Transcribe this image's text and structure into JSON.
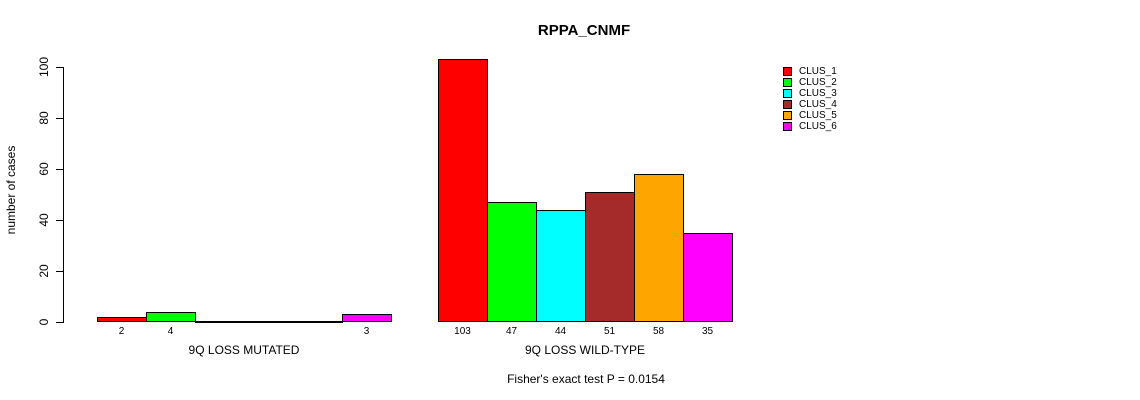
{
  "chart_data": {
    "type": "bar",
    "title": "RPPA_CNMF",
    "ylabel": "number of cases",
    "xlabel": "",
    "ylim": [
      0,
      100
    ],
    "yticks": [
      0,
      20,
      40,
      60,
      80,
      100
    ],
    "grid": false,
    "legend_position": "right",
    "categories": [
      "9Q LOSS MUTATED",
      "9Q LOSS WILD-TYPE"
    ],
    "series": [
      {
        "name": "CLUS_1",
        "color": "#FF0000",
        "values": [
          2,
          103
        ]
      },
      {
        "name": "CLUS_2",
        "color": "#00FF00",
        "values": [
          4,
          47
        ]
      },
      {
        "name": "CLUS_3",
        "color": "#00FFFF",
        "values": [
          0,
          44
        ]
      },
      {
        "name": "CLUS_4",
        "color": "#A52A2A",
        "values": [
          0,
          51
        ]
      },
      {
        "name": "CLUS_5",
        "color": "#FFA500",
        "values": [
          0,
          58
        ]
      },
      {
        "name": "CLUS_6",
        "color": "#FF00FF",
        "values": [
          3,
          35
        ]
      }
    ],
    "bar_value_labels": {
      "show_zero": false
    },
    "footnote": "Fisher's exact test P = 0.0154",
    "axis_color": "#000000",
    "bar_border_color": "#000000"
  }
}
